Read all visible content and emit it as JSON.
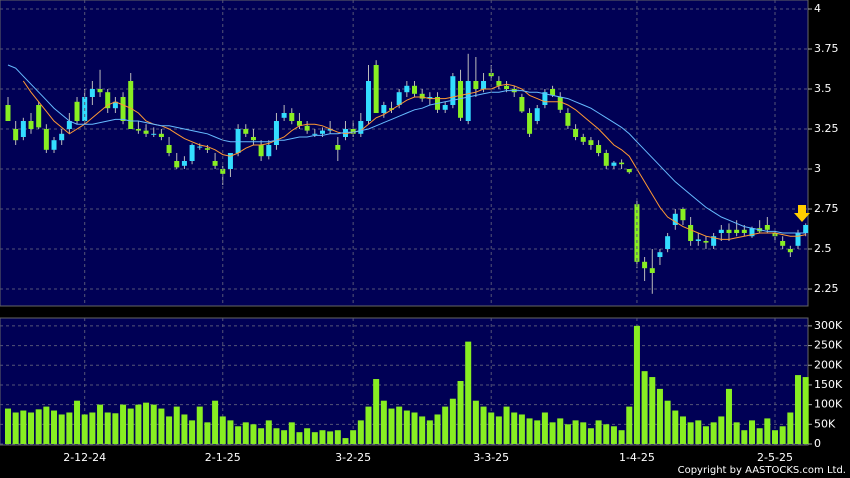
{
  "chart_data": [
    {
      "type": "candlestick",
      "ylim": [
        2.15,
        4.0
      ],
      "yticks": [
        2.25,
        2.5,
        2.75,
        3,
        3.25,
        3.5,
        3.75,
        4
      ],
      "grid": true,
      "up_color": "#33ddff",
      "down_color": "#88ee22",
      "candles": [
        [
          3.4,
          3.45,
          3.3,
          3.3
        ],
        [
          3.25,
          3.3,
          3.15,
          3.18
        ],
        [
          3.2,
          3.32,
          3.18,
          3.3
        ],
        [
          3.3,
          3.35,
          3.22,
          3.25
        ],
        [
          3.4,
          3.42,
          3.25,
          3.26
        ],
        [
          3.25,
          3.28,
          3.1,
          3.12
        ],
        [
          3.12,
          3.2,
          3.1,
          3.18
        ],
        [
          3.18,
          3.25,
          3.15,
          3.22
        ],
        [
          3.25,
          3.35,
          3.22,
          3.3
        ],
        [
          3.42,
          3.45,
          3.28,
          3.3
        ],
        [
          3.3,
          3.5,
          3.28,
          3.45
        ],
        [
          3.45,
          3.55,
          3.4,
          3.5
        ],
        [
          3.5,
          3.62,
          3.45,
          3.48
        ],
        [
          3.48,
          3.5,
          3.35,
          3.38
        ],
        [
          3.38,
          3.45,
          3.35,
          3.42
        ],
        [
          3.45,
          3.48,
          3.28,
          3.3
        ],
        [
          3.55,
          3.6,
          3.25,
          3.25
        ],
        [
          3.25,
          3.3,
          3.22,
          3.24
        ],
        [
          3.24,
          3.28,
          3.2,
          3.22
        ],
        [
          3.22,
          3.26,
          3.2,
          3.22
        ],
        [
          3.22,
          3.25,
          3.18,
          3.2
        ],
        [
          3.15,
          3.2,
          3.08,
          3.1
        ],
        [
          3.05,
          3.1,
          3.0,
          3.01
        ],
        [
          3.02,
          3.08,
          3.0,
          3.05
        ],
        [
          3.05,
          3.16,
          3.03,
          3.15
        ],
        [
          3.14,
          3.16,
          3.12,
          3.14
        ],
        [
          3.13,
          3.15,
          3.1,
          3.12
        ],
        [
          3.05,
          3.1,
          3.0,
          3.02
        ],
        [
          3.0,
          3.02,
          2.9,
          2.97
        ],
        [
          3.0,
          3.1,
          2.95,
          3.1
        ],
        [
          3.1,
          3.28,
          3.08,
          3.25
        ],
        [
          3.25,
          3.28,
          3.2,
          3.22
        ],
        [
          3.2,
          3.25,
          3.15,
          3.18
        ],
        [
          3.15,
          3.18,
          3.05,
          3.08
        ],
        [
          3.08,
          3.18,
          3.06,
          3.15
        ],
        [
          3.15,
          3.35,
          3.12,
          3.3
        ],
        [
          3.32,
          3.4,
          3.3,
          3.35
        ],
        [
          3.35,
          3.38,
          3.28,
          3.3
        ],
        [
          3.3,
          3.35,
          3.25,
          3.27
        ],
        [
          3.27,
          3.3,
          3.22,
          3.24
        ],
        [
          3.22,
          3.25,
          3.2,
          3.22
        ],
        [
          3.22,
          3.26,
          3.2,
          3.24
        ],
        [
          3.24,
          3.3,
          3.22,
          3.25
        ],
        [
          3.15,
          3.2,
          3.05,
          3.12
        ],
        [
          3.2,
          3.3,
          3.18,
          3.25
        ],
        [
          3.25,
          3.3,
          3.2,
          3.22
        ],
        [
          3.22,
          3.35,
          3.2,
          3.3
        ],
        [
          3.3,
          3.65,
          3.28,
          3.55
        ],
        [
          3.65,
          3.68,
          3.35,
          3.35
        ],
        [
          3.35,
          3.42,
          3.32,
          3.4
        ],
        [
          3.38,
          3.42,
          3.35,
          3.37
        ],
        [
          3.4,
          3.5,
          3.38,
          3.48
        ],
        [
          3.48,
          3.55,
          3.45,
          3.52
        ],
        [
          3.52,
          3.55,
          3.45,
          3.47
        ],
        [
          3.47,
          3.5,
          3.42,
          3.44
        ],
        [
          3.44,
          3.48,
          3.4,
          3.45
        ],
        [
          3.45,
          3.48,
          3.35,
          3.37
        ],
        [
          3.37,
          3.42,
          3.35,
          3.4
        ],
        [
          3.4,
          3.6,
          3.38,
          3.58
        ],
        [
          3.55,
          3.62,
          3.3,
          3.32
        ],
        [
          3.3,
          3.72,
          3.28,
          3.55
        ],
        [
          3.55,
          3.7,
          3.45,
          3.5
        ],
        [
          3.5,
          3.6,
          3.48,
          3.55
        ],
        [
          3.6,
          3.65,
          3.55,
          3.58
        ],
        [
          3.55,
          3.58,
          3.5,
          3.52
        ],
        [
          3.52,
          3.55,
          3.48,
          3.5
        ],
        [
          3.5,
          3.52,
          3.45,
          3.48
        ],
        [
          3.45,
          3.47,
          3.35,
          3.36
        ],
        [
          3.35,
          3.38,
          3.2,
          3.22
        ],
        [
          3.3,
          3.4,
          3.28,
          3.38
        ],
        [
          3.4,
          3.5,
          3.38,
          3.48
        ],
        [
          3.5,
          3.52,
          3.45,
          3.46
        ],
        [
          3.45,
          3.48,
          3.35,
          3.37
        ],
        [
          3.35,
          3.38,
          3.25,
          3.27
        ],
        [
          3.25,
          3.28,
          3.18,
          3.2
        ],
        [
          3.2,
          3.22,
          3.15,
          3.17
        ],
        [
          3.18,
          3.2,
          3.12,
          3.15
        ],
        [
          3.15,
          3.18,
          3.08,
          3.1
        ],
        [
          3.1,
          3.12,
          3.0,
          3.02
        ],
        [
          3.02,
          3.05,
          3.0,
          3.04
        ],
        [
          3.04,
          3.06,
          3.0,
          3.03
        ],
        [
          3.0,
          3.0,
          2.97,
          2.98
        ],
        [
          2.78,
          2.8,
          2.38,
          2.42
        ],
        [
          2.42,
          2.45,
          2.3,
          2.38
        ],
        [
          2.38,
          2.5,
          2.22,
          2.35
        ],
        [
          2.45,
          2.5,
          2.4,
          2.48
        ],
        [
          2.5,
          2.6,
          2.48,
          2.58
        ],
        [
          2.65,
          2.75,
          2.62,
          2.72
        ],
        [
          2.75,
          2.76,
          2.65,
          2.68
        ],
        [
          2.65,
          2.7,
          2.52,
          2.55
        ],
        [
          2.55,
          2.6,
          2.52,
          2.56
        ],
        [
          2.55,
          2.58,
          2.5,
          2.54
        ],
        [
          2.52,
          2.6,
          2.5,
          2.58
        ],
        [
          2.6,
          2.65,
          2.55,
          2.62
        ],
        [
          2.62,
          2.66,
          2.55,
          2.6
        ],
        [
          2.62,
          2.68,
          2.58,
          2.6
        ],
        [
          2.62,
          2.65,
          2.58,
          2.6
        ],
        [
          2.58,
          2.64,
          2.57,
          2.63
        ],
        [
          2.63,
          2.68,
          2.6,
          2.61
        ],
        [
          2.65,
          2.7,
          2.6,
          2.62
        ],
        [
          2.6,
          2.63,
          2.55,
          2.58
        ],
        [
          2.55,
          2.58,
          2.5,
          2.52
        ],
        [
          2.5,
          2.52,
          2.45,
          2.48
        ],
        [
          2.52,
          2.62,
          2.5,
          2.6
        ],
        [
          2.6,
          2.66,
          2.58,
          2.65
        ]
      ],
      "series": [
        {
          "color": "#ff9933",
          "values": [
            null,
            null,
            3.55,
            3.48,
            3.42,
            3.36,
            3.3,
            3.26,
            3.22,
            3.25,
            3.28,
            3.32,
            3.36,
            3.4,
            3.42,
            3.4,
            3.38,
            3.35,
            3.3,
            3.28,
            3.27,
            3.25,
            3.22,
            3.19,
            3.17,
            3.15,
            3.14,
            3.12,
            3.09,
            3.08,
            3.1,
            3.13,
            3.15,
            3.15,
            3.16,
            3.18,
            3.2,
            3.24,
            3.27,
            3.28,
            3.28,
            3.27,
            3.25,
            3.23,
            3.22,
            3.23,
            3.24,
            3.28,
            3.32,
            3.34,
            3.37,
            3.4,
            3.43,
            3.45,
            3.45,
            3.44,
            3.44,
            3.44,
            3.45,
            3.46,
            3.47,
            3.48,
            3.5,
            3.5,
            3.52,
            3.53,
            3.52,
            3.5,
            3.46,
            3.44,
            3.42,
            3.42,
            3.42,
            3.4,
            3.37,
            3.33,
            3.29,
            3.25,
            3.2,
            3.15,
            3.12,
            3.08,
            3.0,
            2.92,
            2.84,
            2.76,
            2.7,
            2.67,
            2.64,
            2.62,
            2.6,
            2.58,
            2.57,
            2.56,
            2.56,
            2.57,
            2.58,
            2.59,
            2.6,
            2.6,
            2.6,
            2.59,
            2.58,
            2.58,
            2.59
          ]
        },
        {
          "color": "#66bbff",
          "values": [
            3.65,
            3.63,
            3.58,
            3.53,
            3.48,
            3.43,
            3.38,
            3.34,
            3.3,
            3.28,
            3.28,
            3.28,
            3.29,
            3.3,
            3.31,
            3.31,
            3.3,
            3.3,
            3.29,
            3.28,
            3.27,
            3.27,
            3.26,
            3.25,
            3.24,
            3.23,
            3.22,
            3.2,
            3.18,
            3.17,
            3.17,
            3.17,
            3.17,
            3.17,
            3.17,
            3.18,
            3.18,
            3.19,
            3.2,
            3.2,
            3.21,
            3.21,
            3.22,
            3.22,
            3.23,
            3.23,
            3.24,
            3.25,
            3.27,
            3.29,
            3.31,
            3.33,
            3.35,
            3.37,
            3.38,
            3.4,
            3.41,
            3.42,
            3.43,
            3.44,
            3.45,
            3.46,
            3.47,
            3.48,
            3.48,
            3.49,
            3.49,
            3.49,
            3.48,
            3.48,
            3.47,
            3.46,
            3.45,
            3.44,
            3.42,
            3.4,
            3.38,
            3.35,
            3.32,
            3.29,
            3.26,
            3.22,
            3.17,
            3.12,
            3.07,
            3.02,
            2.97,
            2.92,
            2.88,
            2.84,
            2.8,
            2.76,
            2.73,
            2.7,
            2.68,
            2.66,
            2.64,
            2.63,
            2.62,
            2.61,
            2.61,
            2.6,
            2.6,
            2.6,
            2.6
          ]
        }
      ]
    },
    {
      "type": "bar",
      "color": "#88ee22",
      "ylim": [
        0,
        320000
      ],
      "yticks": [
        {
          "value": 0,
          "label": "0"
        },
        {
          "value": 50000,
          "label": "50K"
        },
        {
          "value": 100000,
          "label": "100K"
        },
        {
          "value": 150000,
          "label": "150K"
        },
        {
          "value": 200000,
          "label": "200K"
        },
        {
          "value": 250000,
          "label": "250K"
        },
        {
          "value": 300000,
          "label": "300K"
        }
      ],
      "grid": true,
      "categories": [
        null,
        null,
        null,
        null,
        null,
        null,
        null,
        null,
        null,
        null,
        "2-12-24",
        null,
        null,
        null,
        null,
        null,
        null,
        null,
        null,
        null,
        null,
        null,
        null,
        null,
        null,
        null,
        null,
        null,
        "2-1-25",
        null,
        null,
        null,
        null,
        null,
        null,
        null,
        null,
        null,
        null,
        null,
        null,
        null,
        null,
        null,
        null,
        "3-2-25",
        null,
        null,
        null,
        null,
        null,
        null,
        null,
        null,
        null,
        null,
        null,
        null,
        null,
        null,
        null,
        null,
        null,
        "3-3-25",
        null,
        null,
        null,
        null,
        null,
        null,
        null,
        null,
        null,
        null,
        null,
        null,
        null,
        null,
        null,
        null,
        null,
        null,
        "1-4-25",
        null,
        null,
        null,
        null,
        null,
        null,
        null,
        null,
        null,
        null,
        null,
        null,
        null,
        null,
        null,
        null,
        null,
        "2-5-25",
        null,
        null,
        null,
        null
      ],
      "values": [
        90000,
        80000,
        85000,
        80000,
        88000,
        95000,
        85000,
        75000,
        80000,
        110000,
        75000,
        80000,
        100000,
        80000,
        78000,
        100000,
        90000,
        100000,
        105000,
        100000,
        90000,
        70000,
        95000,
        75000,
        60000,
        95000,
        55000,
        110000,
        70000,
        60000,
        45000,
        55000,
        50000,
        40000,
        60000,
        40000,
        35000,
        55000,
        30000,
        40000,
        30000,
        35000,
        32000,
        35000,
        15000,
        35000,
        60000,
        95000,
        165000,
        110000,
        90000,
        95000,
        85000,
        80000,
        70000,
        60000,
        75000,
        95000,
        115000,
        160000,
        260000,
        110000,
        95000,
        80000,
        70000,
        95000,
        80000,
        75000,
        65000,
        60000,
        80000,
        55000,
        65000,
        50000,
        60000,
        55000,
        40000,
        60000,
        50000,
        45000,
        35000,
        95000,
        300000,
        185000,
        170000,
        140000,
        110000,
        85000,
        70000,
        55000,
        60000,
        45000,
        55000,
        70000,
        140000,
        55000,
        35000,
        60000,
        40000,
        65000,
        35000,
        45000,
        80000,
        175000,
        170000
      ]
    },
    {
      "type": "text",
      "text": "Copyright by AASTOCKS.com Ltd."
    }
  ]
}
